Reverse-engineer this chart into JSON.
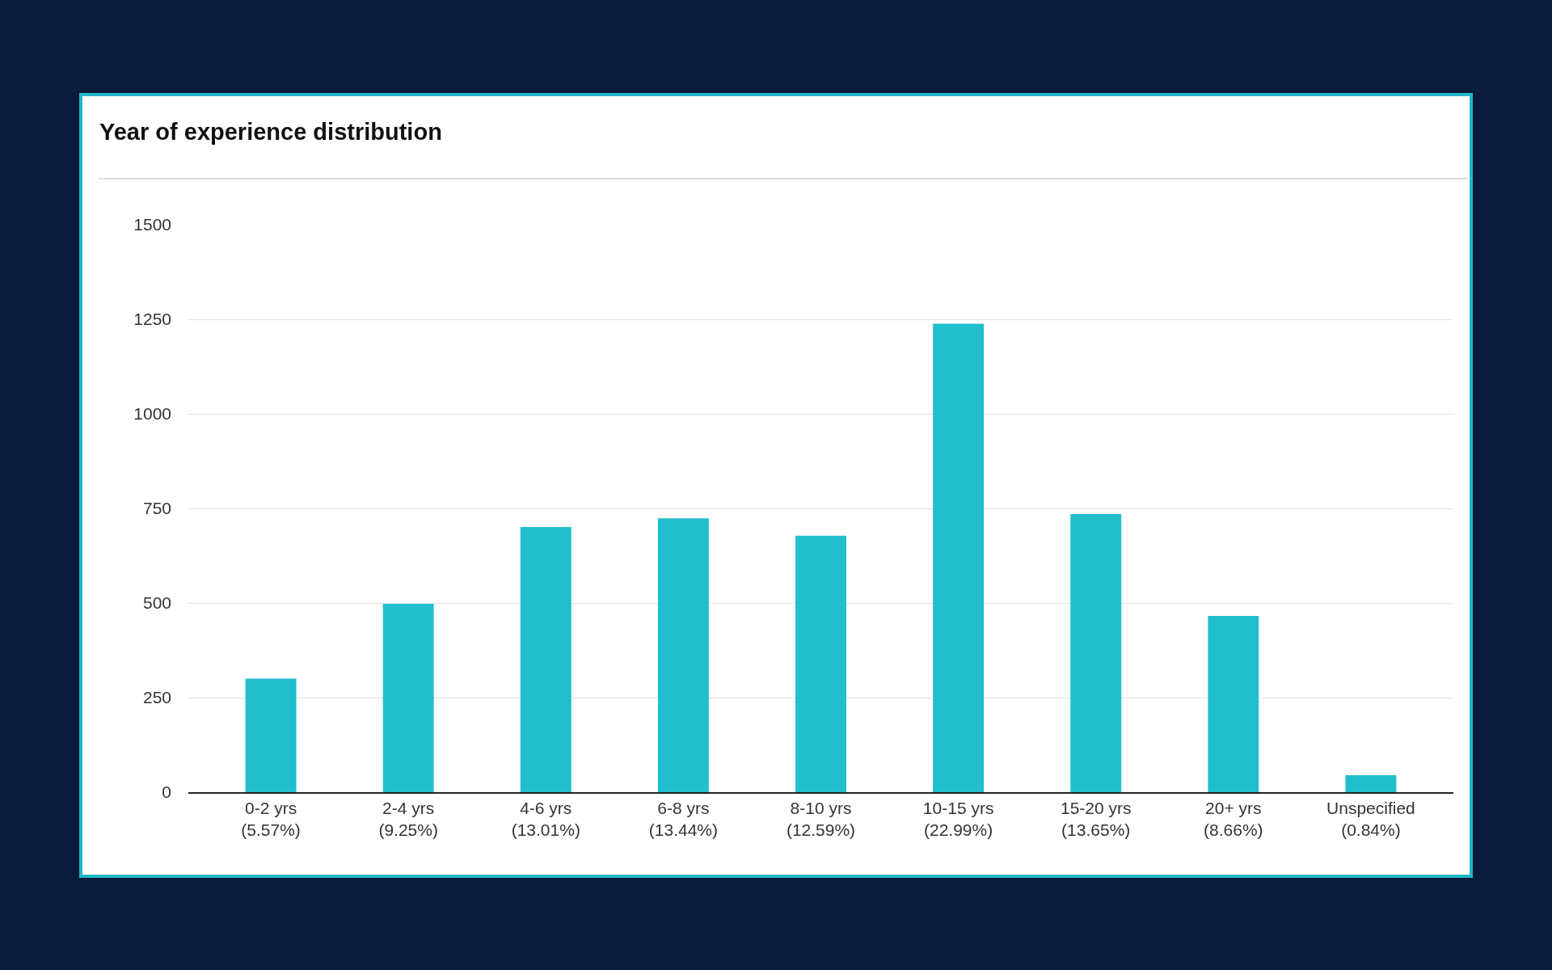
{
  "chart_data": {
    "type": "bar",
    "title": "Year of experience distribution",
    "categories": [
      "0-2 yrs\n(5.57%)",
      "2-4 yrs\n(9.25%)",
      "4-6 yrs\n(13.01%)",
      "6-8 yrs\n(13.44%)",
      "8-10 yrs\n(12.59%)",
      "10-15 yrs\n(22.99%)",
      "15-20 yrs\n(13.65%)",
      "20+ yrs\n(8.66%)",
      "Unspecified\n(0.84%)"
    ],
    "values": [
      300,
      498,
      701,
      724,
      678,
      1238,
      735,
      466,
      45
    ],
    "color": "#21bfcc",
    "ylim": [
      0,
      1500
    ],
    "yticks": [
      0,
      250,
      500,
      750,
      1000,
      1250,
      1500
    ],
    "grid": "y",
    "legend": false
  }
}
